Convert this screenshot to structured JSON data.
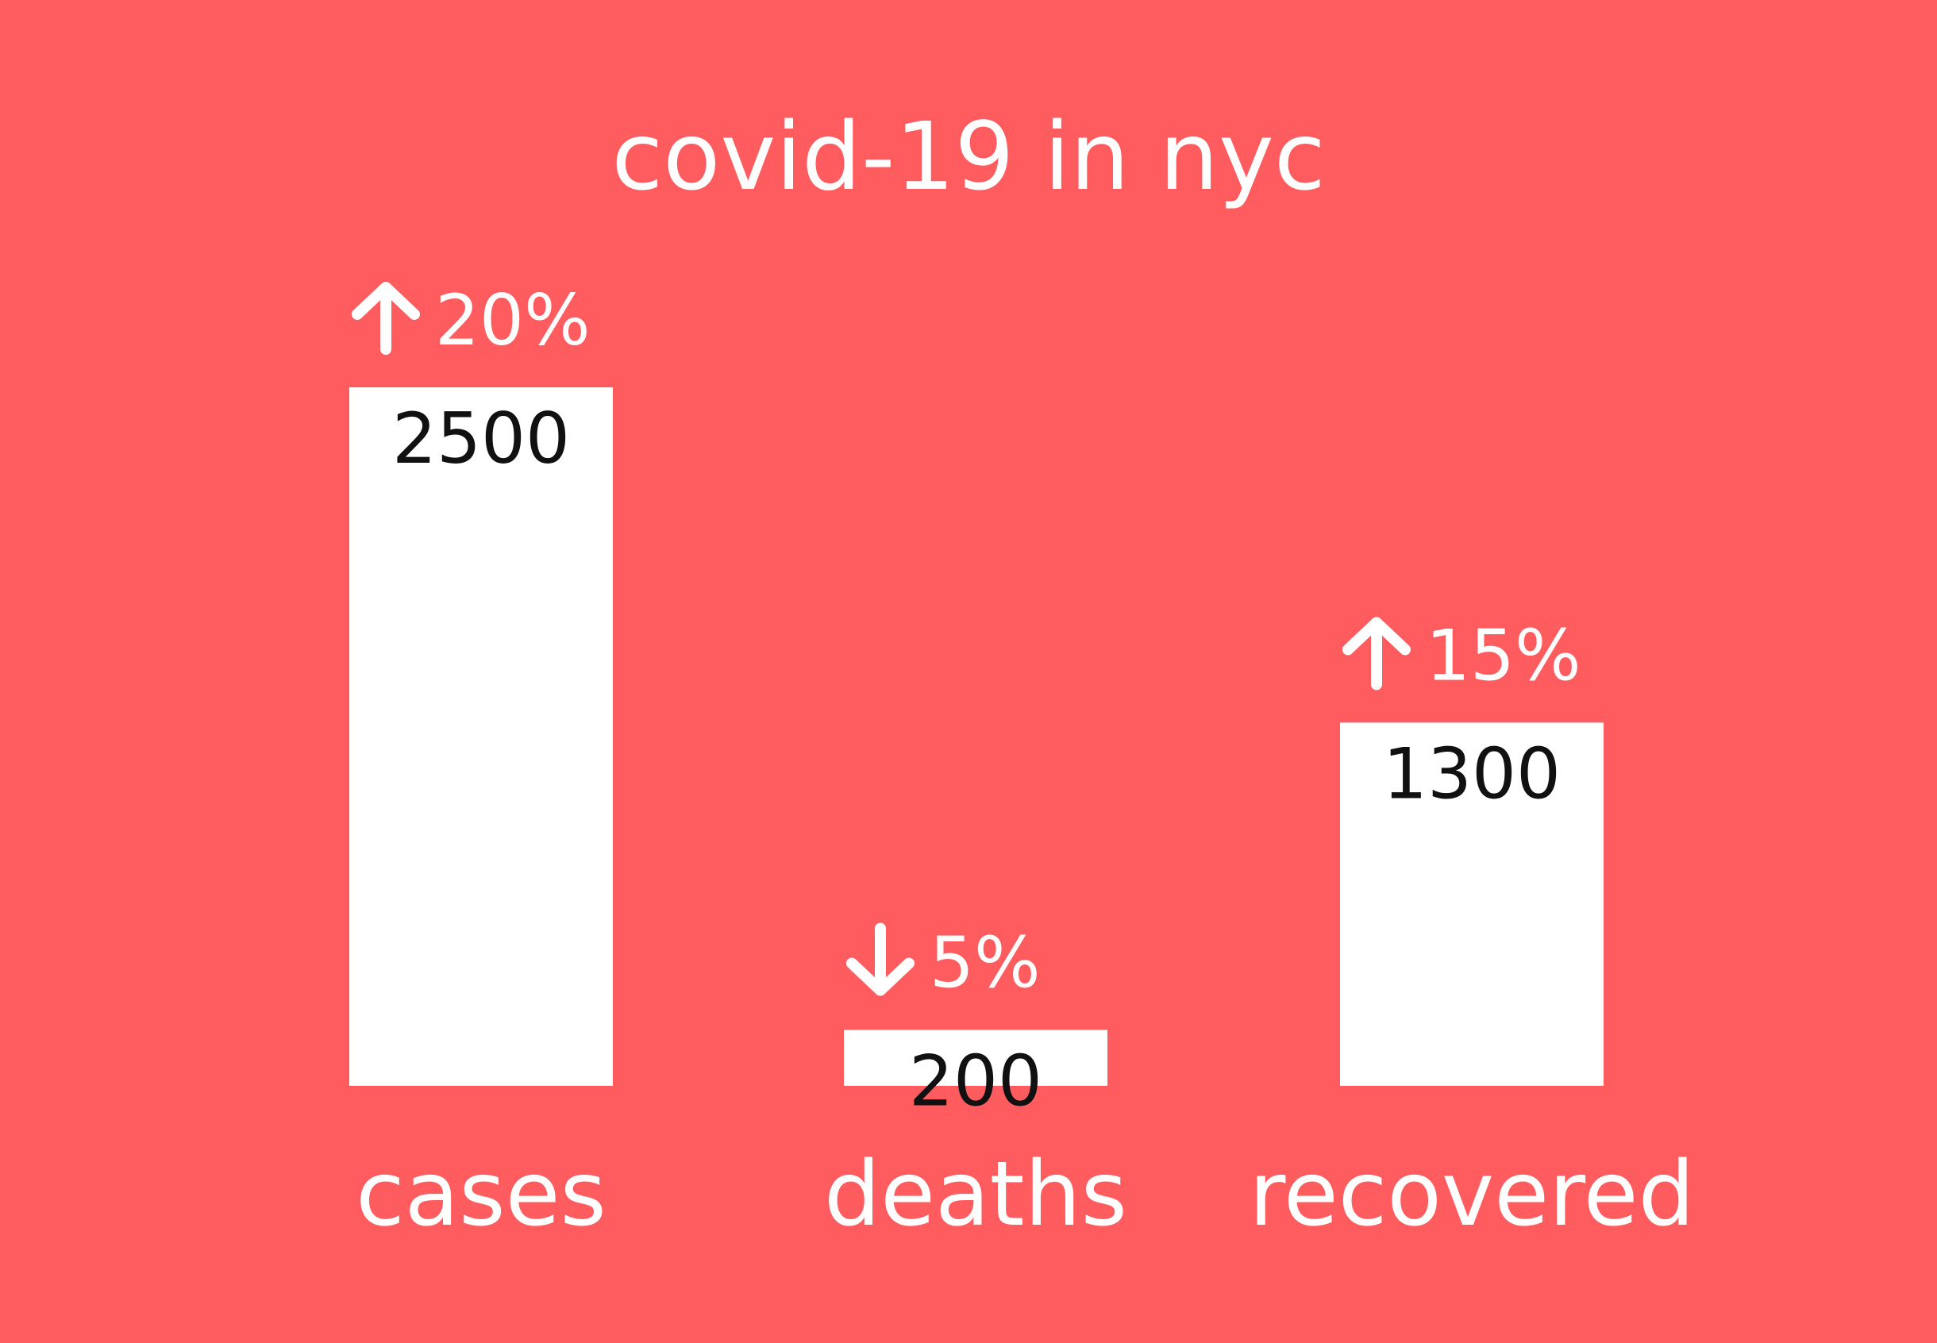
{
  "colors": {
    "background": "#ff5c5f",
    "bar": "#ffffff",
    "text": "#ffffff",
    "value_text": "#111111"
  },
  "chart_data": {
    "type": "bar",
    "title": "covid-19 in nyc",
    "categories": [
      "cases",
      "deaths",
      "recovered"
    ],
    "values": [
      2500,
      200,
      1300
    ],
    "value_labels": [
      "2500",
      "200",
      "1300"
    ],
    "changes": [
      {
        "label": "20%",
        "direction": "up",
        "icon": "arrow-up-icon"
      },
      {
        "label": "5%",
        "direction": "down",
        "icon": "arrow-down-icon"
      },
      {
        "label": "15%",
        "direction": "up",
        "icon": "arrow-up-icon"
      }
    ],
    "ylim": [
      0,
      2500
    ],
    "grid": false,
    "legend": "none",
    "xlabel": "",
    "ylabel": ""
  }
}
